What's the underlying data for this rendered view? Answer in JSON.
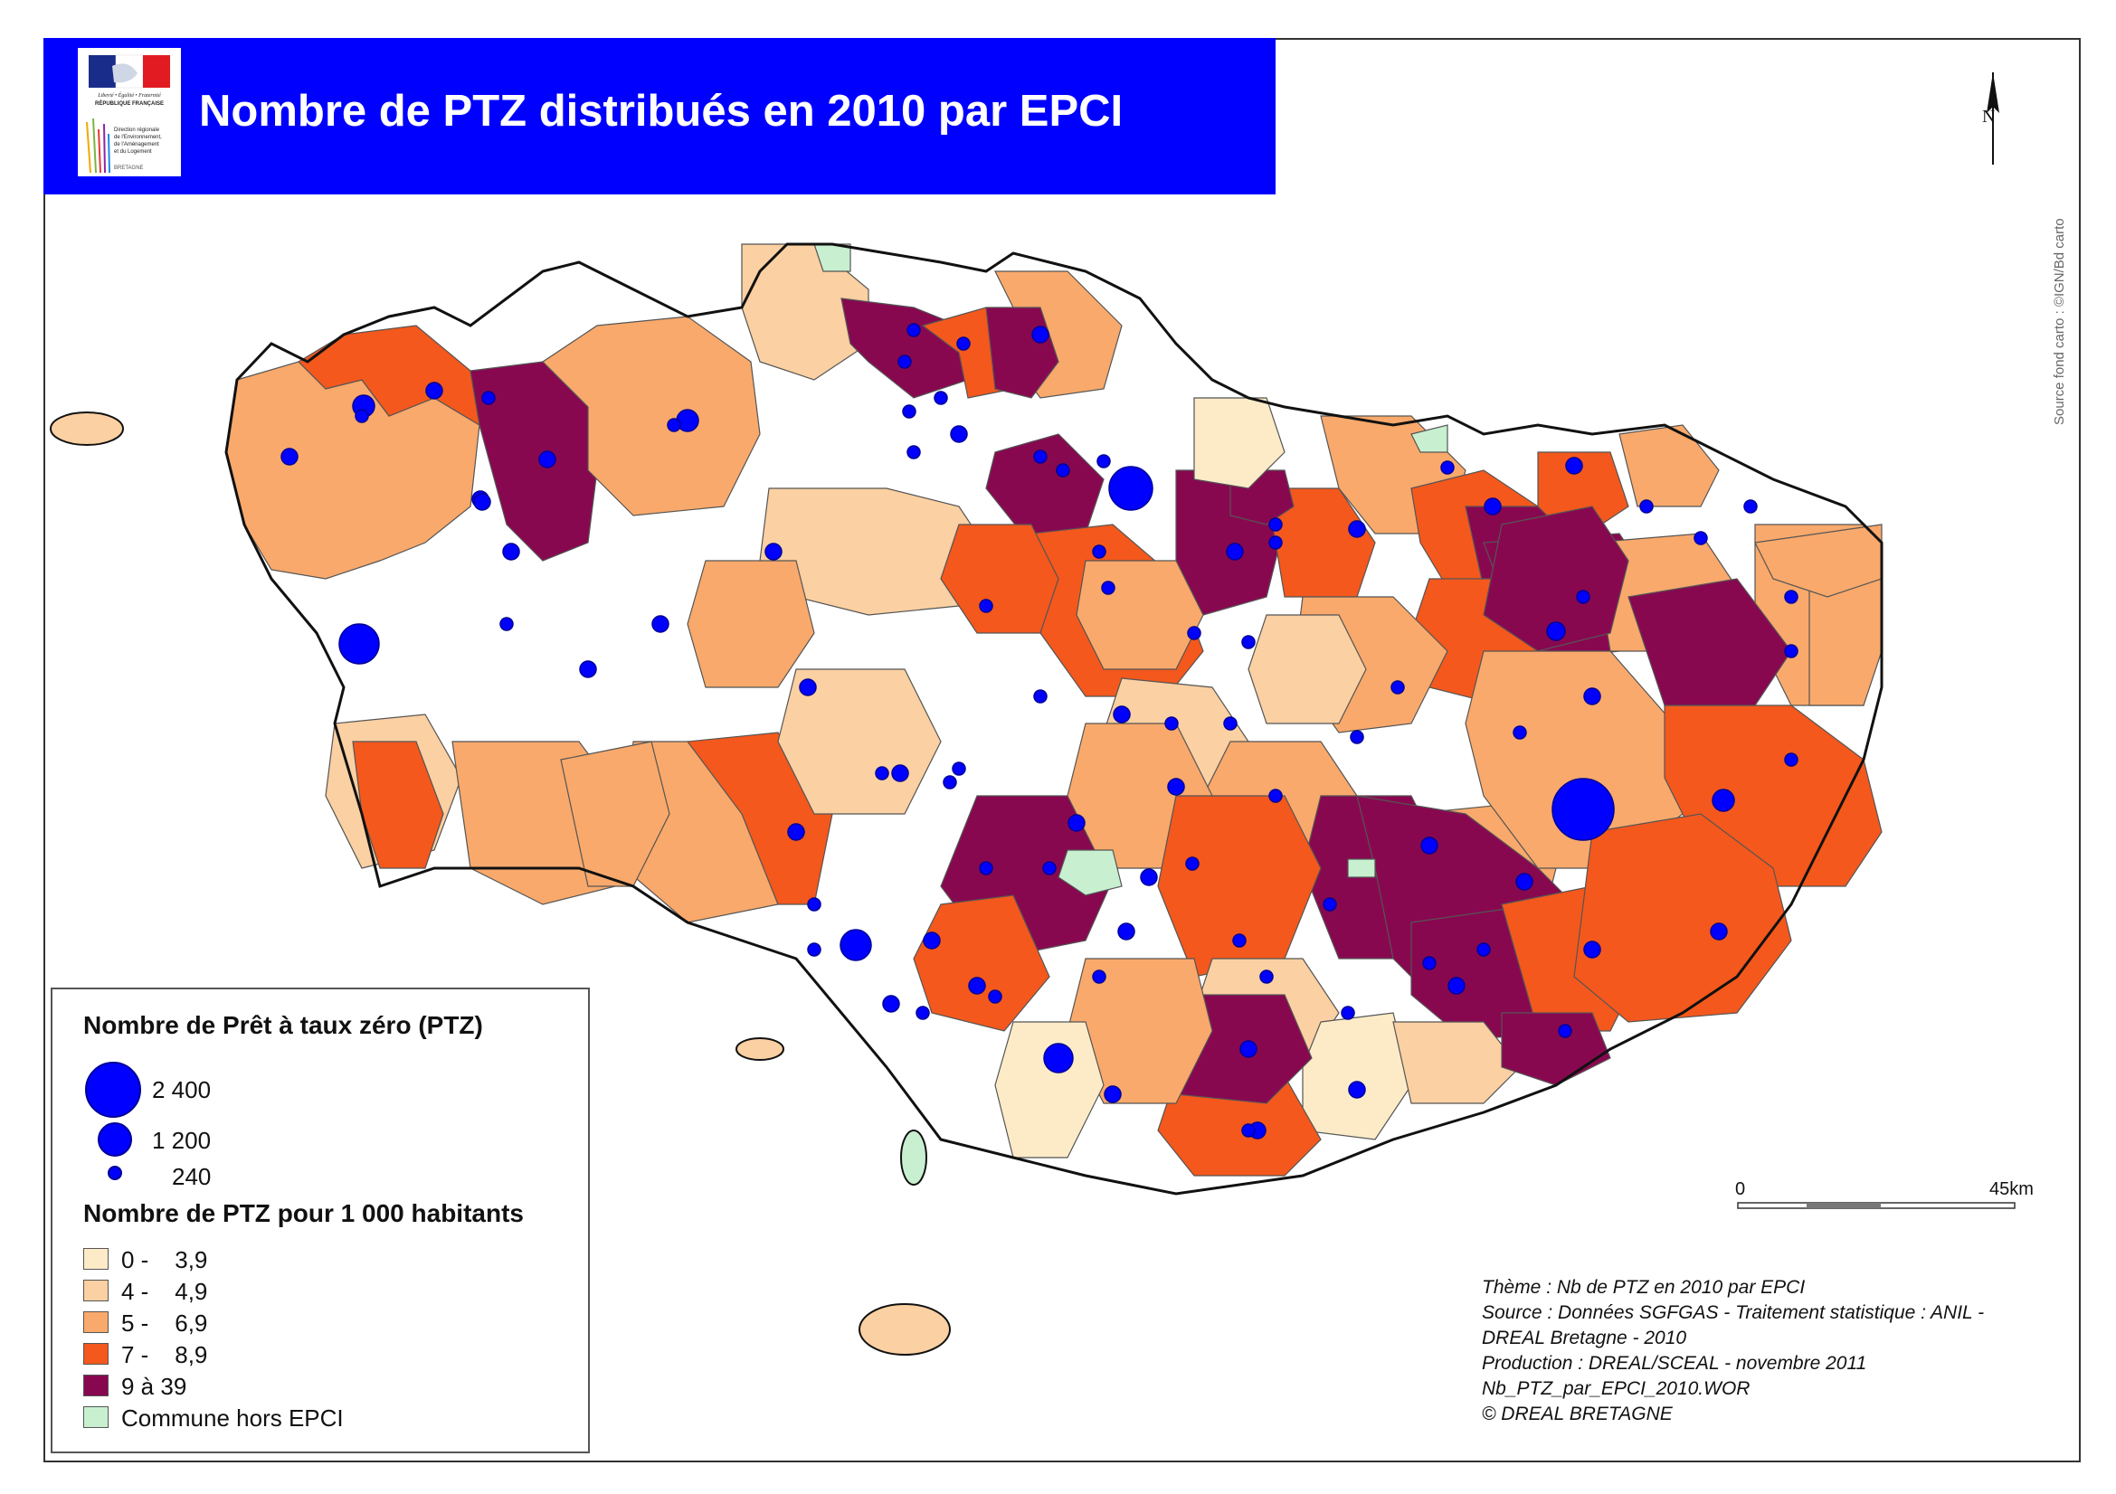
{
  "title": "Nombre de PTZ distribués en 2010 par EPCI",
  "north_label": "N",
  "source_credit": "Source fond carto : ©IGN/Bd carto",
  "logo": {
    "motto": "Liberté • Égalité • Fraternité",
    "republic": "RÉPUBLIQUE FRANÇAISE",
    "direction": [
      "Direction régionale",
      "de l'Environnement,",
      "de l'Aménagement",
      "et du Logement"
    ],
    "region": "BRETAGNE"
  },
  "colors": {
    "band": "#0000ff",
    "dot": "#0000ff",
    "class1": "#fdebc8",
    "class2": "#fbd0a2",
    "class3": "#f9a96b",
    "class4": "#f4581c",
    "class5": "#880850",
    "hors": "#c8f0d0"
  },
  "legend": {
    "title_circles": "Nombre de Prêt à taux zéro (PTZ)",
    "circles": [
      {
        "value": 2400,
        "label": "2 400"
      },
      {
        "value": 1200,
        "label": "1 200"
      },
      {
        "value": 240,
        "label": "240"
      }
    ],
    "title_classes": "Nombre de PTZ pour 1 000 habitants",
    "classes": [
      {
        "label": "0 -    3,9",
        "color": "#fdebc8"
      },
      {
        "label": "4 -    4,9",
        "color": "#fbd0a2"
      },
      {
        "label": "5 -    6,9",
        "color": "#f9a96b"
      },
      {
        "label": "7 -    8,9",
        "color": "#f4581c"
      },
      {
        "label": "9 à 39",
        "color": "#880850"
      },
      {
        "label": "Commune hors EPCI",
        "color": "#c8f0d0"
      }
    ]
  },
  "scale": {
    "start": "0",
    "end": "45km"
  },
  "meta": [
    "Thème : Nb de PTZ en 2010 par EPCI",
    "Source : Données SGFGAS - Traitement statistique : ANIL -",
    "DREAL Bretagne - 2010",
    "Production : DREAL/SCEAL - novembre 2011",
    "Nb_PTZ_par_EPCI_2010.WOR",
    "© DREAL BRETAGNE"
  ]
}
